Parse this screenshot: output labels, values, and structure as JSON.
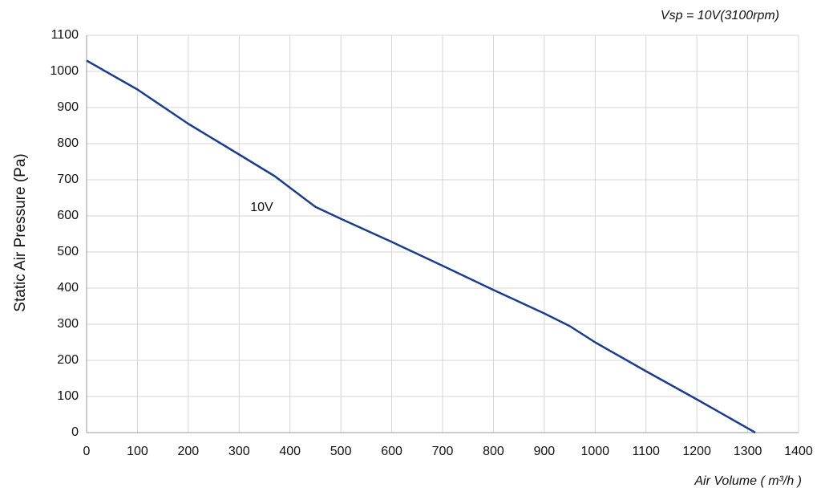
{
  "chart_data": {
    "type": "line",
    "subtitle": "Vsp = 10V(3100rpm)",
    "x_label": "Air Volume ( m³/h )",
    "y_label": "Static Air Pressure  (Pa)",
    "series": [
      {
        "name": "10V",
        "color": "#1a3d8c",
        "x": [
          0,
          100,
          200,
          300,
          370,
          450,
          500,
          600,
          700,
          800,
          900,
          950,
          1000,
          1100,
          1200,
          1315
        ],
        "values": [
          1030,
          950,
          855,
          770,
          710,
          625,
          592,
          528,
          462,
          395,
          330,
          295,
          250,
          170,
          92,
          0
        ]
      }
    ],
    "xlim": [
      0,
      1400
    ],
    "xticks": [
      0,
      100,
      200,
      300,
      400,
      500,
      600,
      700,
      800,
      900,
      1000,
      1100,
      1200,
      1300,
      1400
    ],
    "ylim": [
      0,
      1100
    ],
    "yticks": [
      0,
      100,
      200,
      300,
      400,
      500,
      600,
      700,
      800,
      900,
      1000,
      1100
    ],
    "grid": true
  }
}
